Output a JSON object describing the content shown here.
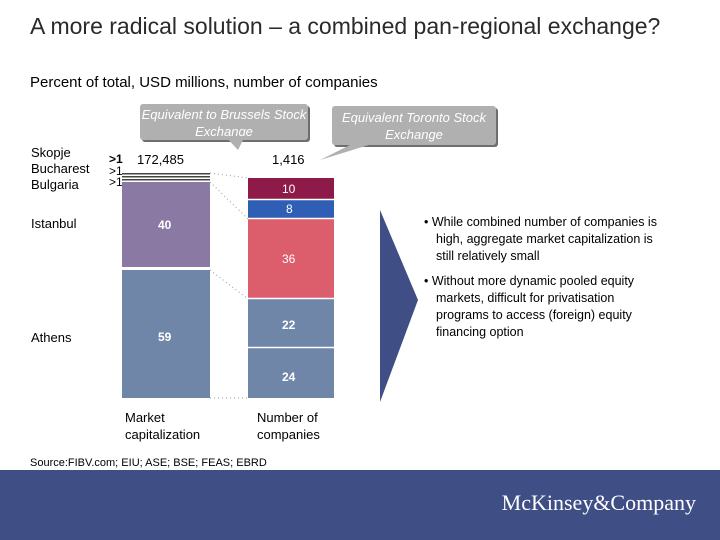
{
  "title": "A more radical solution – a combined pan-regional exchange?",
  "subtitle": "Percent of total, USD millions, number of companies",
  "callouts": {
    "brussels": "Equivalent to Brussels Stock Exchange",
    "toronto": "Equivalent Toronto Stock Exchange"
  },
  "country_labels": {
    "skopje": "Skopje",
    "bucharest": "Bucharest",
    "bulgaria": "Bulgaria",
    "istanbul": "Istanbul",
    "athens": "Athens"
  },
  "small_values": [
    ">1",
    ">1",
    ">1"
  ],
  "totals": {
    "market_cap": "172,485",
    "companies": "1,416"
  },
  "axis_labels": {
    "market_cap": "Market capitalization",
    "companies": "Number of companies"
  },
  "colors": {
    "istanbul": "#8a7aa3",
    "athens": "#7086a8",
    "bulgaria": "#8e1a4a",
    "bucharest": "#2e5fb5",
    "istanbul_companies": "#dc5e6c",
    "footer": "#3f4e85"
  },
  "chart_data": {
    "type": "bar",
    "categories": [
      "Market capitalization",
      "Number of companies"
    ],
    "series": [
      {
        "name": "Athens",
        "values": [
          59,
          24
        ]
      },
      {
        "name": "Istanbul",
        "values": [
          40,
          22
        ]
      },
      {
        "name": "Bulgaria",
        "values": [
          ">1",
          36
        ]
      },
      {
        "name": "Bucharest",
        "values": [
          ">1",
          8
        ]
      },
      {
        "name": "Skopje",
        "values": [
          ">1",
          10
        ]
      }
    ],
    "totals": [
      "172,485",
      "1,416"
    ]
  },
  "bullets": [
    "While combined number of companies is high, aggregate market capitalization is still relatively small",
    "Without more dynamic pooled equity markets, difficult for privatisation programs to access (foreign) equity financing option"
  ],
  "source": "Source:FIBV.com; EIU; ASE; BSE; FEAS; EBRD",
  "brand": "McKinsey&Company"
}
